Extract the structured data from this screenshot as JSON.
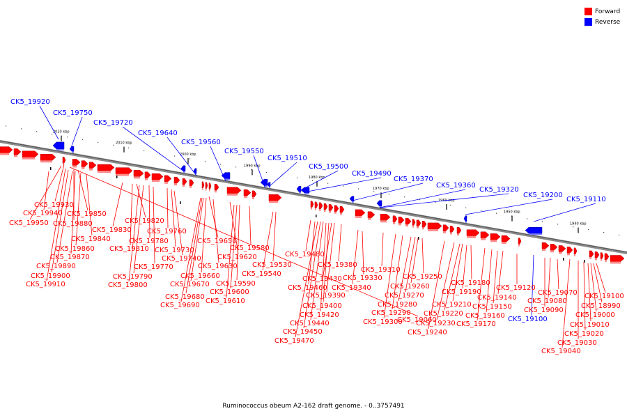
{
  "legend": {
    "forward_label": "Forward",
    "reverse_label": "Reverse",
    "forward_color": "#ff0000",
    "reverse_color": "#0000ff"
  },
  "caption": "Ruminococcus obeum A2-162 draft genome. - 0..3757491",
  "scale_labels": [
    "2020 kbp",
    "2010 kbp",
    "2000 kbp",
    "1990 kbp",
    "1980 kbp",
    "1970 kbp",
    "1960 kbp",
    "1950 kbp",
    "1940 kbp"
  ],
  "reverse_gene_labels": [
    "CK5_19920",
    "CK5_19750",
    "CK5_19720",
    "CK5_19640",
    "CK5_19560",
    "CK5_19550",
    "CK5_19510",
    "CK5_19500",
    "CK5_19490",
    "CK5_19370",
    "CK5_19360",
    "CK5_19320",
    "CK5_19200",
    "CK5_19110"
  ],
  "forward_gene_labels": [
    "CK5_19930",
    "CK5_19940",
    "CK5_19950",
    "CK5_19850",
    "CK5_19880",
    "CK5_19840",
    "CK5_19860",
    "CK5_19870",
    "CK5_19890",
    "CK5_19900",
    "CK5_19910",
    "CK5_19820",
    "CK5_19830",
    "CK5_19810",
    "CK5_19780",
    "CK5_19760",
    "CK5_19730",
    "CK5_19740",
    "CK5_19770",
    "CK5_19790",
    "CK5_19800",
    "CK5_19650",
    "CK5_19620",
    "CK5_19630",
    "CK5_19660",
    "CK5_19670",
    "CK5_19680",
    "CK5_19690",
    "CK5_19580",
    "CK5_19590",
    "CK5_19600",
    "CK5_19610",
    "CK5_19530",
    "CK5_19540",
    "CK5_19480",
    "CK5_19380",
    "CK5_19430",
    "CK5_19460",
    "CK5_19390",
    "CK5_19400",
    "CK5_19420",
    "CK5_19440",
    "CK5_19450",
    "CK5_19470",
    "CK5_19330",
    "CK5_19340",
    "CK5_19310",
    "CK5_19250",
    "CK5_19260",
    "CK5_19270",
    "CK5_19280",
    "CK5_19290",
    "CK5_19300",
    "CK5_19180",
    "CK5_19190",
    "CK5_19210",
    "CK5_19220",
    "CK5_19230",
    "CK5_19240",
    "CK5_19120",
    "CK5_19140",
    "CK5_19150",
    "CK5_19160",
    "CK5_19170",
    "CK5_19070",
    "CK5_19080",
    "CK5_19090",
    "CK5_19100",
    "CK5_18990",
    "CK5_19000",
    "CK5_19010",
    "CK5_19020",
    "CK5_19030",
    "CK5_19040",
    "CK5_19060"
  ]
}
